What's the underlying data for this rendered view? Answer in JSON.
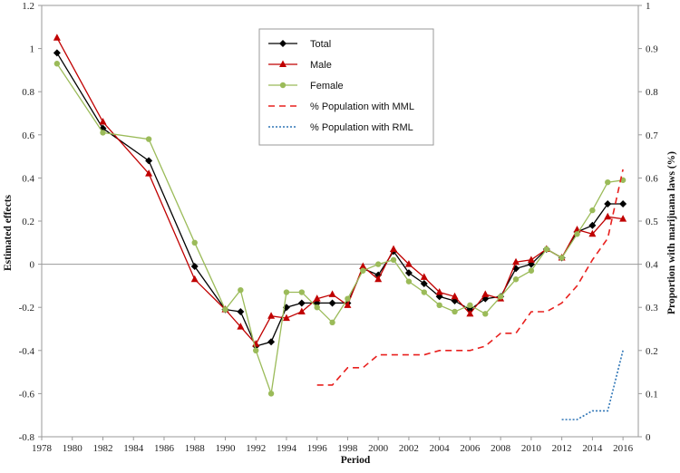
{
  "chart_data": {
    "type": "line",
    "title": "",
    "xlabel": "Period",
    "ylabel": "Estimated effects",
    "y2label": "Proportion with marijuana laws (%)",
    "xlim": [
      1978,
      2017
    ],
    "ylim": [
      -0.8,
      1.2
    ],
    "y2lim": [
      0,
      1
    ],
    "x_ticks": [
      "1978",
      "1980",
      "1982",
      "1984",
      "1986",
      "1988",
      "1990",
      "1992",
      "1994",
      "1996",
      "1998",
      "2000",
      "2002",
      "2004",
      "2006",
      "2008",
      "2010",
      "2012",
      "2014",
      "2016"
    ],
    "y_ticks": [
      "-0.8",
      "-0.6",
      "-0.4",
      "-0.2",
      "0",
      "0.2",
      "0.4",
      "0.6",
      "0.8",
      "1",
      "1.2"
    ],
    "y2_ticks": [
      "0",
      "0.1",
      "0.2",
      "0.3",
      "0.4",
      "0.5",
      "0.6",
      "0.7",
      "0.8",
      "0.9",
      "1"
    ],
    "grid": false,
    "legend_position": "top-center",
    "series": [
      {
        "name": "Total",
        "axis": "left",
        "color": "#000000",
        "marker": "diamond",
        "dash": "solid",
        "x": [
          1979,
          1982,
          1985,
          1988,
          1990,
          1991,
          1992,
          1993,
          1994,
          1995,
          1996,
          1997,
          1998,
          1999,
          2000,
          2001,
          2002,
          2003,
          2004,
          2005,
          2006,
          2007,
          2008,
          2009,
          2010,
          2011,
          2012,
          2013,
          2014,
          2015,
          2016
        ],
        "y": [
          0.98,
          0.63,
          0.48,
          -0.01,
          -0.21,
          -0.22,
          -0.38,
          -0.36,
          -0.2,
          -0.18,
          -0.18,
          -0.18,
          -0.18,
          -0.02,
          -0.05,
          0.06,
          -0.04,
          -0.09,
          -0.15,
          -0.17,
          -0.21,
          -0.16,
          -0.15,
          -0.02,
          0.0,
          0.07,
          0.03,
          0.15,
          0.18,
          0.28,
          0.28
        ]
      },
      {
        "name": "Male",
        "axis": "left",
        "color": "#c00000",
        "marker": "triangle",
        "dash": "solid",
        "x": [
          1979,
          1982,
          1985,
          1988,
          1990,
          1991,
          1992,
          1993,
          1994,
          1995,
          1996,
          1997,
          1998,
          1999,
          2000,
          2001,
          2002,
          2003,
          2004,
          2005,
          2006,
          2007,
          2008,
          2009,
          2010,
          2011,
          2012,
          2013,
          2014,
          2015,
          2016
        ],
        "y": [
          1.05,
          0.66,
          0.42,
          -0.07,
          -0.21,
          -0.29,
          -0.37,
          -0.24,
          -0.25,
          -0.22,
          -0.16,
          -0.14,
          -0.19,
          -0.01,
          -0.07,
          0.07,
          0.0,
          -0.06,
          -0.13,
          -0.15,
          -0.23,
          -0.14,
          -0.16,
          0.01,
          0.02,
          0.07,
          0.03,
          0.16,
          0.14,
          0.22,
          0.21
        ]
      },
      {
        "name": "Female",
        "axis": "left",
        "color": "#9bbb59",
        "marker": "circle",
        "dash": "solid",
        "x": [
          1979,
          1982,
          1985,
          1988,
          1990,
          1991,
          1992,
          1993,
          1994,
          1995,
          1996,
          1997,
          1998,
          1999,
          2000,
          2001,
          2002,
          2003,
          2004,
          2005,
          2006,
          2007,
          2008,
          2009,
          2010,
          2011,
          2012,
          2013,
          2014,
          2015,
          2016
        ],
        "y": [
          0.93,
          0.61,
          0.58,
          0.1,
          -0.21,
          -0.12,
          -0.4,
          -0.6,
          -0.13,
          -0.13,
          -0.2,
          -0.27,
          -0.16,
          -0.03,
          0.0,
          0.02,
          -0.08,
          -0.13,
          -0.19,
          -0.22,
          -0.19,
          -0.23,
          -0.15,
          -0.07,
          -0.03,
          0.07,
          0.03,
          0.14,
          0.25,
          0.38,
          0.39
        ]
      },
      {
        "name": "% Population with MML",
        "axis": "right",
        "color": "#e8201e",
        "marker": "none",
        "dash": "dashed",
        "x": [
          1996,
          1997,
          1998,
          1999,
          2000,
          2001,
          2002,
          2003,
          2004,
          2005,
          2006,
          2007,
          2008,
          2009,
          2010,
          2011,
          2012,
          2013,
          2014,
          2015,
          2016
        ],
        "y": [
          0.12,
          0.12,
          0.16,
          0.16,
          0.19,
          0.19,
          0.19,
          0.19,
          0.2,
          0.2,
          0.2,
          0.21,
          0.24,
          0.24,
          0.29,
          0.29,
          0.31,
          0.35,
          0.41,
          0.46,
          0.62
        ]
      },
      {
        "name": "% Population with RML",
        "axis": "right",
        "color": "#2e75b6",
        "marker": "none",
        "dash": "dotted",
        "x": [
          2012,
          2013,
          2014,
          2015,
          2016
        ],
        "y": [
          0.04,
          0.04,
          0.06,
          0.06,
          0.2
        ]
      }
    ]
  }
}
